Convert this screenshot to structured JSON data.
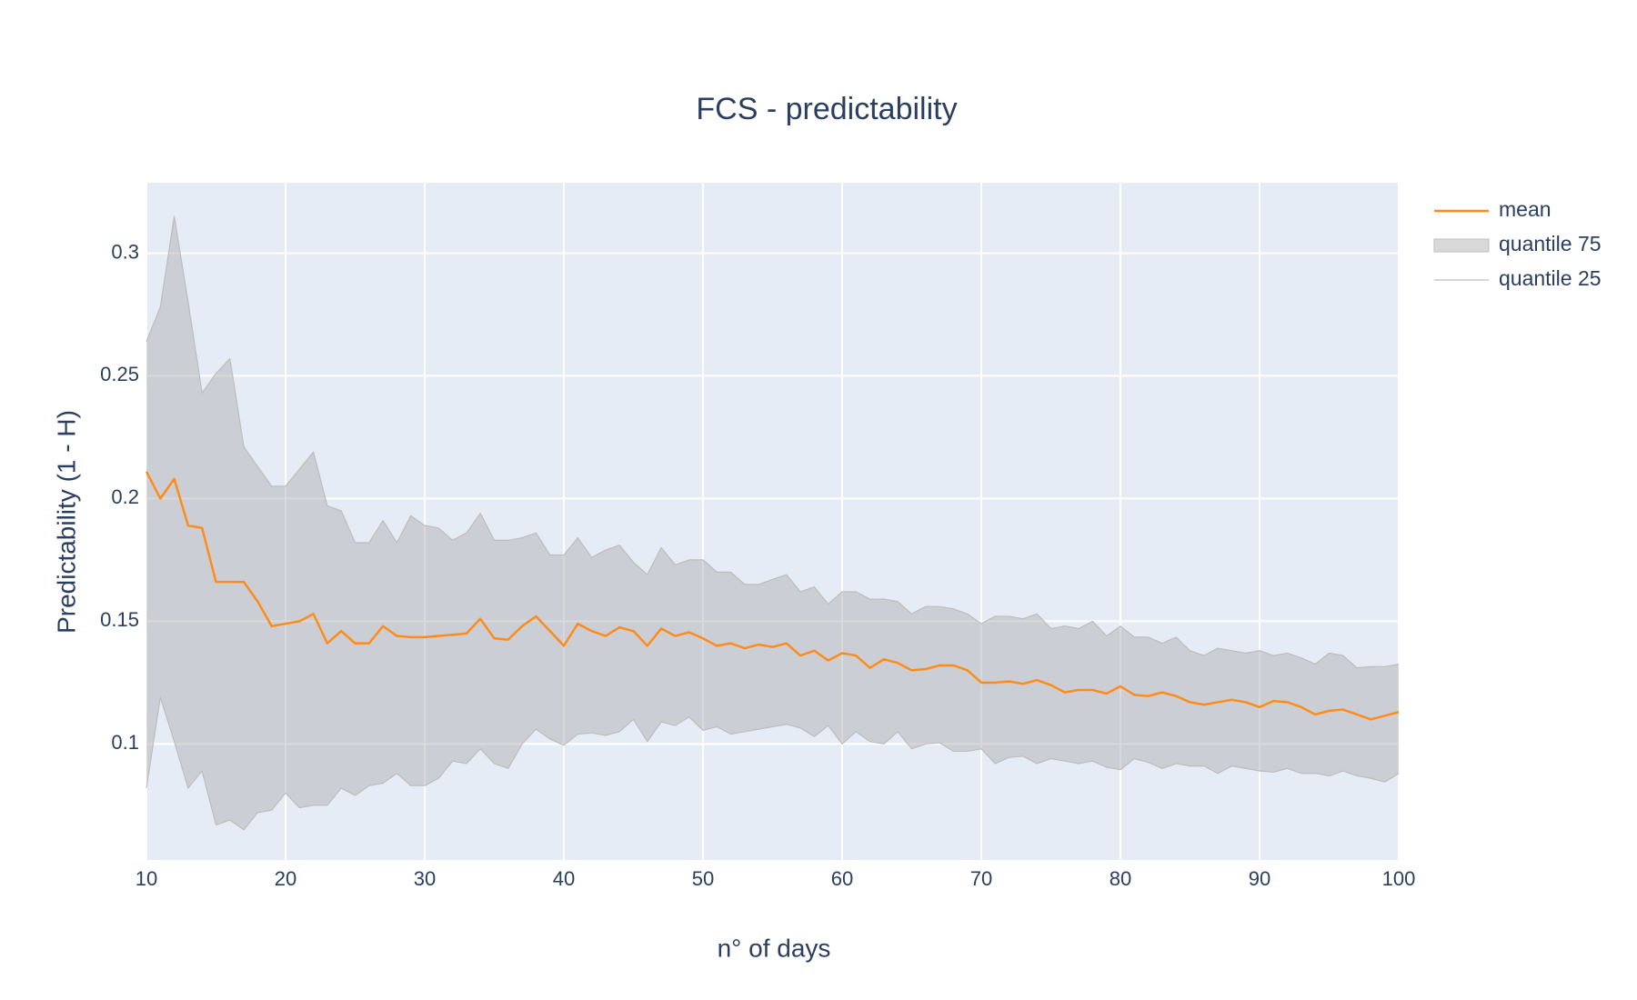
{
  "chart_data": {
    "type": "line",
    "title": "FCS - predictability",
    "x_label": "n° of days",
    "y_label": "Predictability (1 - H)",
    "x": [
      10,
      11,
      12,
      13,
      14,
      15,
      16,
      17,
      18,
      19,
      20,
      21,
      22,
      23,
      24,
      25,
      26,
      27,
      28,
      29,
      30,
      31,
      32,
      33,
      34,
      35,
      36,
      37,
      38,
      39,
      40,
      41,
      42,
      43,
      44,
      45,
      46,
      47,
      48,
      49,
      50,
      51,
      52,
      53,
      54,
      55,
      56,
      57,
      58,
      59,
      60,
      61,
      62,
      63,
      64,
      65,
      66,
      67,
      68,
      69,
      70,
      71,
      72,
      73,
      74,
      75,
      76,
      77,
      78,
      79,
      80,
      81,
      82,
      83,
      84,
      85,
      86,
      87,
      88,
      89,
      90,
      91,
      92,
      93,
      94,
      95,
      96,
      97,
      98,
      99,
      100
    ],
    "series": [
      {
        "name": "mean",
        "color": "#ff8c1a",
        "values": [
          0.211,
          0.2,
          0.208,
          0.189,
          0.188,
          0.166,
          0.166,
          0.166,
          0.158,
          0.148,
          0.149,
          0.15,
          0.153,
          0.141,
          0.146,
          0.141,
          0.141,
          0.148,
          0.144,
          0.1435,
          0.1435,
          0.144,
          0.1445,
          0.145,
          0.151,
          0.143,
          0.1425,
          0.148,
          0.152,
          0.146,
          0.14,
          0.149,
          0.146,
          0.144,
          0.1475,
          0.146,
          0.14,
          0.147,
          0.144,
          0.1455,
          0.143,
          0.14,
          0.141,
          0.139,
          0.1405,
          0.1395,
          0.141,
          0.136,
          0.138,
          0.134,
          0.137,
          0.136,
          0.131,
          0.1345,
          0.133,
          0.13,
          0.1305,
          0.132,
          0.132,
          0.13,
          0.125,
          0.125,
          0.1255,
          0.1245,
          0.126,
          0.124,
          0.121,
          0.122,
          0.122,
          0.1205,
          0.1235,
          0.12,
          0.1195,
          0.121,
          0.1195,
          0.117,
          0.116,
          0.117,
          0.118,
          0.117,
          0.115,
          0.1175,
          0.117,
          0.115,
          0.112,
          0.1135,
          0.114,
          0.112,
          0.11,
          0.1115,
          0.113
        ]
      },
      {
        "name": "quantile 75",
        "color": "#bdbdbd",
        "fill": true,
        "fill_color": "rgba(170,170,170,0.45)",
        "values": [
          0.264,
          0.278,
          0.315,
          0.28,
          0.243,
          0.251,
          0.257,
          0.221,
          0.213,
          0.205,
          0.205,
          0.212,
          0.219,
          0.197,
          0.195,
          0.182,
          0.182,
          0.191,
          0.182,
          0.193,
          0.189,
          0.188,
          0.183,
          0.186,
          0.194,
          0.183,
          0.183,
          0.184,
          0.186,
          0.177,
          0.177,
          0.184,
          0.176,
          0.179,
          0.181,
          0.174,
          0.169,
          0.18,
          0.173,
          0.175,
          0.175,
          0.17,
          0.17,
          0.165,
          0.165,
          0.167,
          0.169,
          0.162,
          0.164,
          0.157,
          0.162,
          0.162,
          0.159,
          0.159,
          0.158,
          0.153,
          0.156,
          0.156,
          0.155,
          0.153,
          0.149,
          0.152,
          0.152,
          0.151,
          0.153,
          0.147,
          0.148,
          0.147,
          0.15,
          0.144,
          0.148,
          0.1435,
          0.1435,
          0.141,
          0.1435,
          0.138,
          0.136,
          0.139,
          0.138,
          0.137,
          0.138,
          0.136,
          0.137,
          0.135,
          0.1325,
          0.137,
          0.136,
          0.131,
          0.1315,
          0.1315,
          0.1325
        ]
      },
      {
        "name": "quantile 25",
        "color": "#bdbdbd",
        "values": [
          0.082,
          0.119,
          0.101,
          0.082,
          0.089,
          0.067,
          0.069,
          0.065,
          0.072,
          0.073,
          0.08,
          0.074,
          0.075,
          0.075,
          0.082,
          0.079,
          0.083,
          0.084,
          0.088,
          0.083,
          0.083,
          0.086,
          0.093,
          0.092,
          0.098,
          0.092,
          0.09,
          0.1,
          0.106,
          0.102,
          0.0995,
          0.104,
          0.1045,
          0.1035,
          0.105,
          0.11,
          0.101,
          0.109,
          0.1075,
          0.111,
          0.1055,
          0.107,
          0.104,
          0.105,
          0.106,
          0.107,
          0.108,
          0.1065,
          0.103,
          0.1075,
          0.1,
          0.105,
          0.101,
          0.1,
          0.105,
          0.098,
          0.1,
          0.1005,
          0.097,
          0.097,
          0.098,
          0.092,
          0.0945,
          0.095,
          0.092,
          0.094,
          0.093,
          0.092,
          0.093,
          0.0905,
          0.0895,
          0.094,
          0.0925,
          0.09,
          0.092,
          0.091,
          0.091,
          0.088,
          0.091,
          0.09,
          0.089,
          0.0885,
          0.09,
          0.088,
          0.088,
          0.087,
          0.089,
          0.087,
          0.086,
          0.0845,
          0.088
        ]
      }
    ],
    "xlim": [
      10,
      100
    ],
    "xticks": [
      10,
      20,
      30,
      40,
      50,
      60,
      70,
      80,
      90,
      100
    ],
    "ylim": [
      0.0527,
      0.3287
    ],
    "yticks": [
      0.1,
      0.15,
      0.2,
      0.25,
      0.3
    ],
    "grid": true,
    "legend": "right"
  }
}
